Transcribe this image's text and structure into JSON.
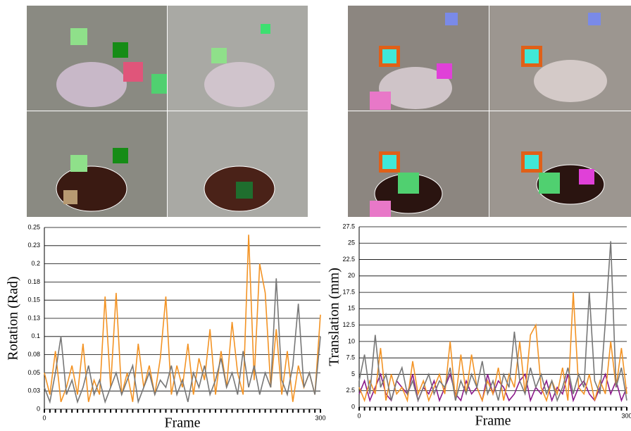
{
  "chart_data": [
    {
      "type": "line",
      "y_label": "Rotation (Rad)",
      "x_label": "Frame",
      "xlim": [
        0,
        300
      ],
      "xticks": [
        0,
        300
      ],
      "ylim": [
        0,
        0.25
      ],
      "yticks": [
        0,
        {
          "value": 0.025,
          "label": "0.03"
        },
        0.05,
        {
          "value": 0.075,
          "label": "0.08"
        },
        0.1,
        {
          "value": 0.125,
          "label": "0.13"
        },
        0.15,
        {
          "value": 0.175,
          "label": "0.18"
        },
        0.2,
        {
          "value": 0.225,
          "label": "0.23"
        },
        0.25
      ],
      "grid": true,
      "x": [
        0,
        6,
        12,
        18,
        24,
        30,
        36,
        42,
        48,
        54,
        60,
        66,
        72,
        78,
        84,
        90,
        96,
        102,
        108,
        114,
        120,
        126,
        132,
        138,
        144,
        150,
        156,
        162,
        168,
        174,
        180,
        186,
        192,
        198,
        204,
        210,
        216,
        222,
        228,
        234,
        240,
        246,
        252,
        258,
        264,
        270,
        276,
        282,
        288,
        294,
        300
      ],
      "series": [
        {
          "color": "#f39324",
          "values": [
            0.05,
            0.02,
            0.08,
            0.01,
            0.03,
            0.06,
            0.02,
            0.09,
            0.01,
            0.04,
            0.02,
            0.155,
            0.03,
            0.16,
            0.02,
            0.05,
            0.01,
            0.09,
            0.03,
            0.06,
            0.02,
            0.07,
            0.155,
            0.02,
            0.06,
            0.03,
            0.09,
            0.02,
            0.07,
            0.04,
            0.11,
            0.02,
            0.08,
            0.03,
            0.12,
            0.05,
            0.02,
            0.24,
            0.04,
            0.2,
            0.16,
            0.03,
            0.11,
            0.02,
            0.08,
            0.01,
            0.06,
            0.03,
            0.05,
            0.02,
            0.13
          ]
        },
        {
          "color": "#777777",
          "values": [
            0.03,
            0.01,
            0.05,
            0.1,
            0.02,
            0.04,
            0.01,
            0.03,
            0.06,
            0.02,
            0.04,
            0.01,
            0.03,
            0.05,
            0.02,
            0.04,
            0.06,
            0.01,
            0.03,
            0.05,
            0.02,
            0.04,
            0.03,
            0.06,
            0.02,
            0.04,
            0.01,
            0.05,
            0.03,
            0.06,
            0.02,
            0.04,
            0.07,
            0.03,
            0.05,
            0.02,
            0.08,
            0.03,
            0.06,
            0.02,
            0.05,
            0.03,
            0.18,
            0.04,
            0.02,
            0.06,
            0.145,
            0.03,
            0.05,
            0.02,
            0.1
          ]
        }
      ]
    },
    {
      "type": "line",
      "y_label": "Translation (mm)",
      "x_label": "Frame",
      "xlim": [
        0,
        300
      ],
      "xticks": [
        0,
        300
      ],
      "ylim": [
        0,
        27.5
      ],
      "yticks": [
        0,
        2.5,
        5,
        7.5,
        10,
        12.5,
        15,
        17.5,
        20,
        22.5,
        25,
        27.5
      ],
      "grid": true,
      "x": [
        0,
        6,
        12,
        18,
        24,
        30,
        36,
        42,
        48,
        54,
        60,
        66,
        72,
        78,
        84,
        90,
        96,
        102,
        108,
        114,
        120,
        126,
        132,
        138,
        144,
        150,
        156,
        162,
        168,
        174,
        180,
        186,
        192,
        198,
        204,
        210,
        216,
        222,
        228,
        234,
        240,
        246,
        252,
        258,
        264,
        270,
        276,
        282,
        288,
        294,
        300
      ],
      "series": [
        {
          "color": "#8b1a8b",
          "values": [
            2,
            4,
            1,
            3,
            5,
            2,
            1,
            4,
            3,
            2,
            5,
            1,
            3,
            2,
            4,
            1,
            3,
            5,
            2,
            1,
            4,
            2,
            3,
            1,
            5,
            2,
            4,
            3,
            1,
            2,
            4,
            5,
            1,
            3,
            2,
            4,
            1,
            3,
            2,
            5,
            1,
            3,
            4,
            2,
            1,
            3,
            5,
            2,
            4,
            1,
            3
          ]
        },
        {
          "color": "#f39324",
          "values": [
            3,
            1,
            4,
            2,
            9,
            1,
            5,
            2,
            3,
            1,
            7,
            2,
            4,
            1,
            3,
            5,
            2,
            10,
            1,
            8,
            2,
            8,
            3,
            1,
            4,
            2,
            6,
            1,
            5,
            3,
            10,
            2,
            11,
            12.5,
            3,
            1,
            4,
            2,
            6,
            1,
            17.5,
            3,
            2,
            5,
            1,
            4,
            2,
            10,
            3,
            9,
            2
          ]
        },
        {
          "color": "#777777",
          "values": [
            4,
            8,
            2,
            11,
            3,
            5,
            1,
            4,
            6,
            2,
            4,
            1,
            3,
            5,
            2,
            4,
            3,
            6,
            1,
            4,
            2,
            5,
            3,
            7,
            2,
            4,
            1,
            5,
            3,
            11.5,
            4,
            2,
            6,
            3,
            5,
            2,
            4,
            1,
            3,
            6,
            2,
            5,
            3,
            17.5,
            4,
            2,
            13,
            25.3,
            3,
            6,
            1
          ]
        }
      ]
    }
  ]
}
